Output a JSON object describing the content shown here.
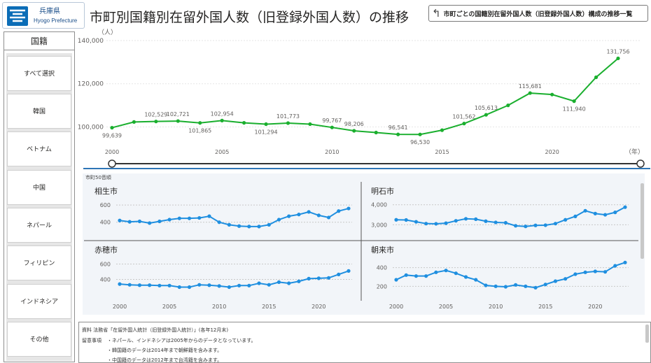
{
  "header": {
    "logo_line1": "兵庫県",
    "logo_line2": "Hyogo Prefecture",
    "title": "市町別国籍別在留外国人数（旧登録外国人数）の推移",
    "back_button_label": "市町ごとの国籍別在留外国人数（旧登録外国人数）構成の推移一覧"
  },
  "sidebar": {
    "header": "国籍",
    "items": [
      {
        "label": "すべて選択"
      },
      {
        "label": "韓国"
      },
      {
        "label": "ベトナム"
      },
      {
        "label": "中国"
      },
      {
        "label": "ネパール"
      },
      {
        "label": "フィリピン"
      },
      {
        "label": "インドネシア"
      },
      {
        "label": "その他"
      }
    ]
  },
  "colors": {
    "main_line": "#1aaf2e",
    "small_line": "#1f8fe0",
    "divider": "#2e75b6",
    "panel_bg": "#f2f5f9"
  },
  "main_chart": {
    "y_unit": "（人）",
    "x_unit": "（年）"
  },
  "small_multiples": {
    "label": "市町50音順"
  },
  "footnote": {
    "line1": "資料  法務省「在留外国人統計（旧登録外国人統計）」(各年12月末)",
    "line2_head": "留意事項",
    "line2": "・ネパール、インドネシアは2005年からのデータとなっています。",
    "line3": "・韓国籍のデータは2014年まで朝鮮籍を含みます。",
    "line4": "・中国籍のデータは2012年まで台湾籍を含みます。"
  },
  "chart_data": [
    {
      "type": "line",
      "title": "",
      "x": [
        2000,
        2001,
        2002,
        2003,
        2004,
        2005,
        2006,
        2007,
        2008,
        2009,
        2010,
        2011,
        2012,
        2013,
        2014,
        2015,
        2016,
        2017,
        2018,
        2019,
        2020,
        2021,
        2022,
        2023
      ],
      "series": [
        {
          "values": [
            99639,
            102300,
            102529,
            102721,
            101865,
            102954,
            101900,
            101294,
            101773,
            101300,
            99767,
            98206,
            97400,
            96541,
            96530,
            98500,
            101562,
            105613,
            110000,
            115681,
            115000,
            111940,
            123000,
            131756
          ]
        }
      ],
      "data_labels": {
        "2000": "99,639",
        "2002": "102,529",
        "2003": "102,721",
        "2004": "101,865",
        "2005": "102,954",
        "2007": "101,294",
        "2008": "101,773",
        "2010": "99,767",
        "2011": "98,206",
        "2013": "96,541",
        "2014": "96,530",
        "2016": "101,562",
        "2017": "105,613",
        "2019": "115,681",
        "2021": "111,940",
        "2023": "131,756"
      },
      "x_ticks": [
        2000,
        2005,
        2010,
        2015,
        2020
      ],
      "y_ticks": [
        100000,
        120000,
        140000
      ],
      "y_tick_labels": [
        "100,000",
        "120,000",
        "140,000"
      ],
      "ylim": [
        94000,
        140000
      ],
      "grid": true
    },
    {
      "type": "line",
      "title": "相生市",
      "x": [
        2000,
        2001,
        2002,
        2003,
        2004,
        2005,
        2006,
        2007,
        2008,
        2009,
        2010,
        2011,
        2012,
        2013,
        2014,
        2015,
        2016,
        2017,
        2018,
        2019,
        2020,
        2021,
        2022,
        2023
      ],
      "series": [
        {
          "values": [
            420,
            405,
            410,
            390,
            410,
            430,
            445,
            445,
            450,
            470,
            400,
            370,
            355,
            350,
            350,
            370,
            430,
            470,
            490,
            520,
            480,
            455,
            530,
            560
          ]
        }
      ],
      "y_ticks": [
        400,
        600
      ],
      "ylim": [
        300,
        650
      ]
    },
    {
      "type": "line",
      "title": "明石市",
      "x": [
        2000,
        2001,
        2002,
        2003,
        2004,
        2005,
        2006,
        2007,
        2008,
        2009,
        2010,
        2011,
        2012,
        2013,
        2014,
        2015,
        2016,
        2017,
        2018,
        2019,
        2020,
        2021,
        2022,
        2023
      ],
      "series": [
        {
          "values": [
            3250,
            3240,
            3150,
            3060,
            3050,
            3080,
            3200,
            3300,
            3280,
            3180,
            3120,
            3100,
            2950,
            2920,
            2970,
            2980,
            3060,
            3250,
            3420,
            3700,
            3560,
            3500,
            3620,
            3880
          ]
        }
      ],
      "y_ticks": [
        3000,
        4000
      ],
      "y_tick_labels": [
        "3,000",
        "4,000"
      ],
      "ylim": [
        2700,
        4200
      ]
    },
    {
      "type": "line",
      "title": "赤穂市",
      "x": [
        2000,
        2001,
        2002,
        2003,
        2004,
        2005,
        2006,
        2007,
        2008,
        2009,
        2010,
        2011,
        2012,
        2013,
        2014,
        2015,
        2016,
        2017,
        2018,
        2019,
        2020,
        2021,
        2022,
        2023
      ],
      "series": [
        {
          "values": [
            340,
            330,
            325,
            325,
            320,
            320,
            300,
            300,
            330,
            325,
            315,
            300,
            320,
            320,
            350,
            330,
            365,
            350,
            375,
            410,
            415,
            420,
            465,
            510
          ]
        }
      ],
      "y_ticks": [
        400,
        600
      ],
      "ylim": [
        250,
        650
      ]
    },
    {
      "type": "line",
      "title": "朝来市",
      "x": [
        2000,
        2001,
        2002,
        2003,
        2004,
        2005,
        2006,
        2007,
        2008,
        2009,
        2010,
        2011,
        2012,
        2013,
        2014,
        2015,
        2016,
        2017,
        2018,
        2019,
        2020,
        2021,
        2022,
        2023
      ],
      "series": [
        {
          "values": [
            270,
            320,
            310,
            310,
            350,
            370,
            340,
            300,
            270,
            210,
            200,
            195,
            215,
            200,
            185,
            220,
            255,
            280,
            330,
            350,
            360,
            355,
            420,
            455
          ]
        }
      ],
      "y_ticks": [
        200,
        400
      ],
      "ylim": [
        150,
        480
      ]
    }
  ]
}
